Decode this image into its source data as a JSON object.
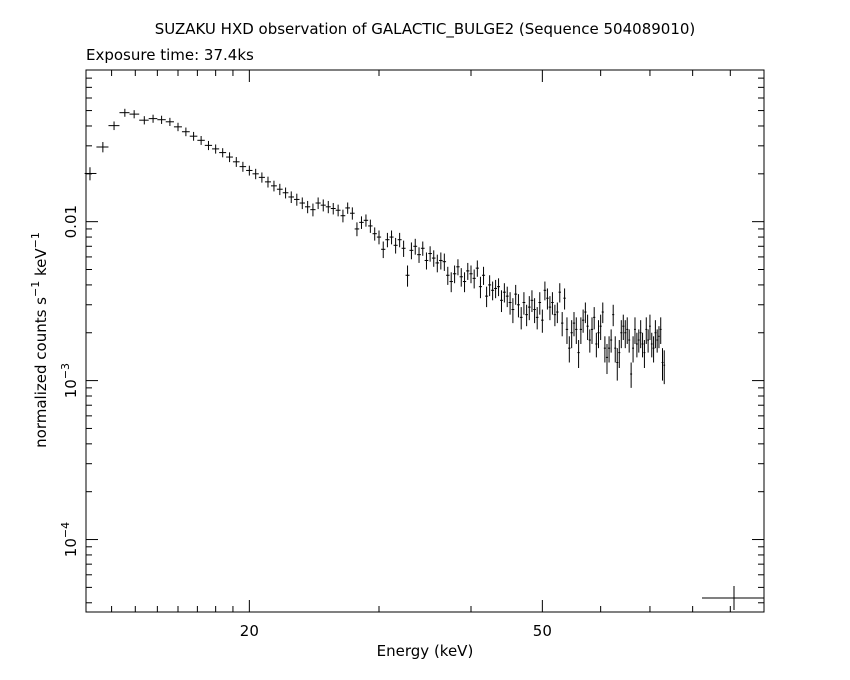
{
  "title": "SUZAKU HXD observation of GALACTIC_BULGE2 (Sequence 504089010)",
  "subtitle": "Exposure time: 37.4ks",
  "chart_data": {
    "type": "scatter",
    "xlabel": "Energy (keV)",
    "ylabel": "normalized counts s^-1 keV^-1",
    "x_scale": "log",
    "y_scale": "log",
    "xlim": [
      12,
      100
    ],
    "ylim": [
      3.5e-05,
      0.09
    ],
    "x_ticks": [
      {
        "value": 20,
        "label": "20"
      },
      {
        "value": 50,
        "label": "50"
      }
    ],
    "y_ticks": [
      {
        "value": 0.01,
        "label": "0.01",
        "base": "",
        "exp": ""
      },
      {
        "value": 0.001,
        "label": "",
        "base": "10",
        "exp": "−3"
      },
      {
        "value": 0.0001,
        "label": "",
        "base": "10",
        "exp": "−4"
      }
    ],
    "error_bar_residual": {
      "x": 90,
      "xerr_lo": 80,
      "xerr_hi": 99,
      "y": 4.45e-05,
      "y_lo": 3.8e-05,
      "y_hi": 5.1e-05
    },
    "series": [
      {
        "points": [
          [
            12.15,
            0.0201,
            0.0019
          ],
          [
            12.65,
            0.0295,
            0.0022
          ],
          [
            13.1,
            0.0402,
            0.0025
          ],
          [
            13.55,
            0.0485,
            0.0028
          ],
          [
            13.95,
            0.0475,
            0.0028
          ],
          [
            14.4,
            0.0435,
            0.0026
          ],
          [
            14.8,
            0.0445,
            0.0026
          ],
          [
            15.2,
            0.0438,
            0.0026
          ],
          [
            15.6,
            0.0425,
            0.0025
          ],
          [
            16.0,
            0.0395,
            0.0024
          ],
          [
            16.4,
            0.0368,
            0.0023
          ],
          [
            16.8,
            0.0345,
            0.0022
          ],
          [
            17.2,
            0.0325,
            0.0021
          ],
          [
            17.6,
            0.0302,
            0.002
          ],
          [
            18.0,
            0.0287,
            0.0019
          ],
          [
            18.4,
            0.0272,
            0.0018
          ],
          [
            18.8,
            0.0255,
            0.0018
          ],
          [
            19.2,
            0.0238,
            0.0017
          ],
          [
            19.6,
            0.0222,
            0.0016
          ],
          [
            20.0,
            0.021,
            0.0015
          ],
          [
            20.4,
            0.02,
            0.0015
          ],
          [
            20.8,
            0.019,
            0.0014
          ],
          [
            21.2,
            0.0178,
            0.0014
          ],
          [
            21.6,
            0.0168,
            0.0013
          ],
          [
            22.0,
            0.016,
            0.0013
          ],
          [
            22.4,
            0.0152,
            0.0012
          ],
          [
            22.8,
            0.0143,
            0.0012
          ],
          [
            23.2,
            0.0138,
            0.0012
          ],
          [
            23.6,
            0.0131,
            0.0011
          ],
          [
            24.0,
            0.0124,
            0.0011
          ],
          [
            24.4,
            0.0119,
            0.0011
          ],
          [
            24.8,
            0.0131,
            0.0011
          ],
          [
            25.2,
            0.0127,
            0.0011
          ],
          [
            25.6,
            0.0124,
            0.0011
          ],
          [
            26.0,
            0.0121,
            0.001
          ],
          [
            26.4,
            0.0118,
            0.001
          ],
          [
            26.8,
            0.0109,
            0.001
          ],
          [
            27.2,
            0.0122,
            0.001
          ],
          [
            27.6,
            0.0113,
            0.001
          ],
          [
            28.0,
            0.009,
            0.0009
          ],
          [
            28.4,
            0.0099,
            0.0009
          ],
          [
            28.8,
            0.0102,
            0.0009
          ],
          [
            29.2,
            0.0094,
            0.0009
          ],
          [
            29.6,
            0.0084,
            0.0008
          ],
          [
            30.0,
            0.008,
            0.0008
          ],
          [
            30.4,
            0.0067,
            0.0008
          ],
          [
            30.8,
            0.0077,
            0.0008
          ],
          [
            31.2,
            0.008,
            0.0008
          ],
          [
            31.6,
            0.0071,
            0.0008
          ],
          [
            32.0,
            0.0077,
            0.0008
          ],
          [
            32.4,
            0.0068,
            0.0008
          ],
          [
            32.8,
            0.0046,
            0.0007
          ],
          [
            33.2,
            0.0066,
            0.0008
          ],
          [
            33.6,
            0.007,
            0.0008
          ],
          [
            34.0,
            0.0062,
            0.0007
          ],
          [
            34.4,
            0.0068,
            0.0007
          ],
          [
            34.8,
            0.0057,
            0.0007
          ],
          [
            35.2,
            0.0063,
            0.0007
          ],
          [
            35.6,
            0.0059,
            0.0007
          ],
          [
            36.0,
            0.0055,
            0.0007
          ],
          [
            36.4,
            0.0057,
            0.0007
          ],
          [
            36.8,
            0.0056,
            0.0007
          ],
          [
            37.2,
            0.0046,
            0.0006
          ],
          [
            37.6,
            0.0042,
            0.0006
          ],
          [
            38.0,
            0.0047,
            0.0006
          ],
          [
            38.4,
            0.0052,
            0.0006
          ],
          [
            38.8,
            0.0045,
            0.0006
          ],
          [
            39.2,
            0.0042,
            0.0006
          ],
          [
            39.6,
            0.0049,
            0.0006
          ],
          [
            40.0,
            0.0047,
            0.0006
          ],
          [
            40.4,
            0.0044,
            0.0006
          ],
          [
            40.8,
            0.0051,
            0.0006
          ],
          [
            41.2,
            0.0039,
            0.0006
          ],
          [
            41.6,
            0.0046,
            0.0006
          ],
          [
            42.0,
            0.0034,
            0.0005
          ],
          [
            42.4,
            0.004,
            0.0006
          ],
          [
            42.8,
            0.0037,
            0.0005
          ],
          [
            43.2,
            0.0038,
            0.0005
          ],
          [
            43.6,
            0.0039,
            0.0005
          ],
          [
            44.0,
            0.0032,
            0.0005
          ],
          [
            44.4,
            0.0036,
            0.0005
          ],
          [
            44.8,
            0.0034,
            0.0005
          ],
          [
            45.2,
            0.0031,
            0.0005
          ],
          [
            45.6,
            0.0028,
            0.0005
          ],
          [
            46.0,
            0.0035,
            0.0005
          ],
          [
            46.4,
            0.003,
            0.0005
          ],
          [
            46.8,
            0.0025,
            0.0004
          ],
          [
            47.2,
            0.0031,
            0.0005
          ],
          [
            47.6,
            0.0026,
            0.0004
          ],
          [
            48.0,
            0.0029,
            0.0005
          ],
          [
            48.4,
            0.0032,
            0.0005
          ],
          [
            48.8,
            0.0028,
            0.0005
          ],
          [
            49.2,
            0.0025,
            0.0004
          ],
          [
            49.6,
            0.0031,
            0.0005
          ],
          [
            50.0,
            0.0024,
            0.0004
          ],
          [
            50.4,
            0.0037,
            0.0005
          ],
          [
            50.8,
            0.0033,
            0.0005
          ],
          [
            51.2,
            0.0029,
            0.0005
          ],
          [
            51.6,
            0.0031,
            0.0005
          ],
          [
            52.0,
            0.0026,
            0.0004
          ],
          [
            52.4,
            0.0027,
            0.0004
          ],
          [
            52.8,
            0.0036,
            0.0005
          ],
          [
            53.2,
            0.0023,
            0.0004
          ],
          [
            53.6,
            0.0033,
            0.0005
          ],
          [
            54.0,
            0.0021,
            0.0004
          ],
          [
            54.4,
            0.0016,
            0.0003
          ],
          [
            54.8,
            0.002,
            0.0004
          ],
          [
            55.2,
            0.0023,
            0.0004
          ],
          [
            55.6,
            0.0021,
            0.0004
          ],
          [
            56.0,
            0.0015,
            0.0003
          ],
          [
            56.4,
            0.0021,
            0.0004
          ],
          [
            56.8,
            0.0024,
            0.0004
          ],
          [
            57.2,
            0.0027,
            0.0004
          ],
          [
            57.6,
            0.0022,
            0.0004
          ],
          [
            58.0,
            0.0018,
            0.0003
          ],
          [
            58.4,
            0.0021,
            0.0004
          ],
          [
            58.8,
            0.0025,
            0.0004
          ],
          [
            59.2,
            0.0017,
            0.0003
          ],
          [
            59.6,
            0.002,
            0.0004
          ],
          [
            60.0,
            0.0022,
            0.0004
          ],
          [
            60.4,
            0.0027,
            0.0004
          ],
          [
            60.8,
            0.0016,
            0.0003
          ],
          [
            61.2,
            0.0014,
            0.0003
          ],
          [
            61.6,
            0.0016,
            0.0003
          ],
          [
            62.0,
            0.0018,
            0.0003
          ],
          [
            62.4,
            0.0026,
            0.0004
          ],
          [
            62.8,
            0.0016,
            0.0003
          ],
          [
            63.2,
            0.0013,
            0.0003
          ],
          [
            63.6,
            0.0015,
            0.0003
          ],
          [
            64.0,
            0.002,
            0.0004
          ],
          [
            64.4,
            0.0022,
            0.0004
          ],
          [
            64.8,
            0.002,
            0.0004
          ],
          [
            65.2,
            0.0021,
            0.0004
          ],
          [
            65.6,
            0.0018,
            0.0003
          ],
          [
            66.0,
            0.0011,
            0.0002
          ],
          [
            66.4,
            0.0016,
            0.0003
          ],
          [
            66.8,
            0.0021,
            0.0004
          ],
          [
            67.2,
            0.0017,
            0.0003
          ],
          [
            67.6,
            0.0018,
            0.0003
          ],
          [
            68.0,
            0.002,
            0.0004
          ],
          [
            68.4,
            0.0017,
            0.0003
          ],
          [
            68.8,
            0.0015,
            0.0003
          ],
          [
            69.2,
            0.0021,
            0.0004
          ],
          [
            69.6,
            0.0018,
            0.0003
          ],
          [
            70.0,
            0.0022,
            0.0004
          ],
          [
            70.4,
            0.0017,
            0.0003
          ],
          [
            70.8,
            0.0016,
            0.0003
          ],
          [
            71.2,
            0.002,
            0.0004
          ],
          [
            71.6,
            0.0018,
            0.0003
          ],
          [
            72.0,
            0.0019,
            0.0003
          ],
          [
            72.4,
            0.0021,
            0.0004
          ],
          [
            72.8,
            0.0013,
            0.0003
          ],
          [
            73.2,
            0.00125,
            0.0003
          ]
        ]
      }
    ]
  }
}
